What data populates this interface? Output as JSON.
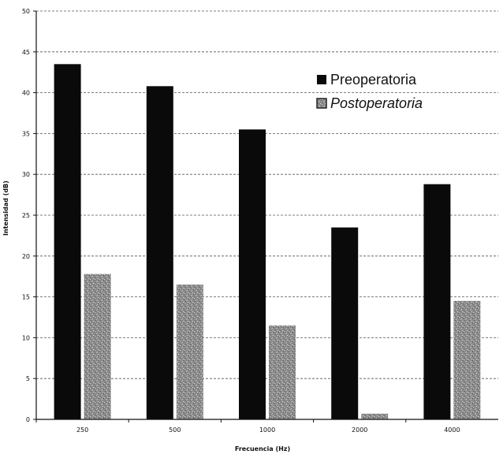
{
  "chart_data": {
    "type": "bar",
    "categories": [
      "250",
      "500",
      "1000",
      "2000",
      "4000"
    ],
    "series": [
      {
        "name": "Preoperatoria",
        "values": [
          43.5,
          40.8,
          35.5,
          23.5,
          28.8
        ],
        "color": "#0a0a0a"
      },
      {
        "name": "Postoperatoria",
        "values": [
          17.8,
          16.5,
          11.5,
          0.7,
          14.5
        ],
        "color": "#7d7d7d"
      }
    ],
    "title": "",
    "xlabel": "Frecuencia (Hz)",
    "ylabel": "Intensidad (dB)",
    "ylim": [
      0,
      50
    ],
    "yticks": [
      0,
      5,
      10,
      15,
      20,
      25,
      30,
      35,
      40,
      45,
      50
    ],
    "grid": true,
    "legend_position": "top-right"
  }
}
